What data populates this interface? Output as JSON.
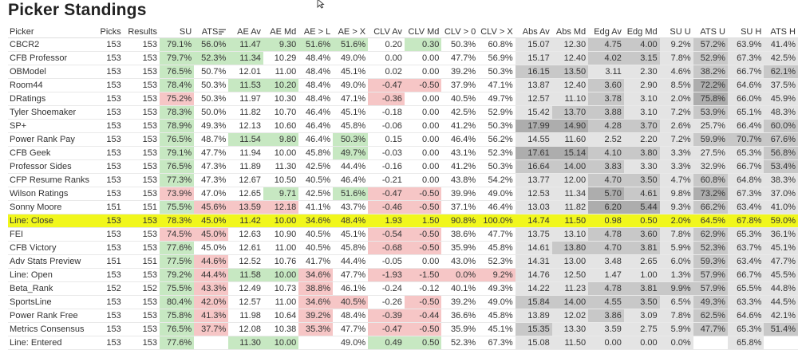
{
  "title": "Picker Standings",
  "colors": {
    "highlight": "#f1f71c",
    "green": "#c7e8c2",
    "red": "#f6c6c6",
    "gray_light": "#e4e4e4",
    "gray_mid": "#c8c8c8",
    "gray_dark": "#adadad"
  },
  "columns": [
    "Picker",
    "Picks",
    "Results",
    "SU",
    "ATS",
    "AE Av",
    "AE Md",
    "AE > L",
    "AE > X",
    "CLV Av",
    "CLV Md",
    "CLV > 0",
    "CLV > X",
    "Abs Av",
    "Abs Md",
    "Edg Av",
    "Edg Md",
    "SU U",
    "ATS U",
    "SU H",
    "ATS H"
  ],
  "rows": [
    {
      "c": [
        "CBCR2",
        "153",
        "153",
        "79.1%",
        "56.0%",
        "11.47",
        "9.30",
        "51.6%",
        "51.6%",
        "0.20",
        "0.30",
        "50.3%",
        "60.8%",
        "15.07",
        "12.30",
        "4.75",
        "4.00",
        "9.2%",
        "57.2%",
        "63.9%",
        "41.4%"
      ],
      "s": [
        "",
        "",
        "",
        "g",
        "g",
        "g",
        "g",
        "g",
        "g",
        "",
        "g",
        "",
        "",
        "a",
        "a",
        "b",
        "b",
        "a",
        "b",
        "a",
        "a"
      ]
    },
    {
      "c": [
        "CFB Professor",
        "153",
        "153",
        "79.7%",
        "52.3%",
        "11.34",
        "10.29",
        "48.4%",
        "49.0%",
        "0.00",
        "0.00",
        "47.7%",
        "56.9%",
        "15.17",
        "12.40",
        "4.02",
        "3.15",
        "7.8%",
        "52.9%",
        "67.3%",
        "42.5%"
      ],
      "s": [
        "",
        "",
        "",
        "g",
        "g",
        "g",
        "",
        "",
        "",
        "",
        "",
        "",
        "",
        "a",
        "a",
        "b",
        "b",
        "a",
        "b",
        "a",
        "a"
      ]
    },
    {
      "c": [
        "OBModel",
        "153",
        "153",
        "76.5%",
        "50.7%",
        "12.01",
        "11.00",
        "48.4%",
        "45.1%",
        "0.02",
        "0.00",
        "39.2%",
        "50.3%",
        "16.15",
        "13.50",
        "3.11",
        "2.30",
        "4.6%",
        "38.2%",
        "66.7%",
        "62.1%"
      ],
      "s": [
        "",
        "",
        "",
        "g",
        "",
        "",
        "",
        "",
        "",
        "",
        "",
        "",
        "",
        "b",
        "b",
        "a",
        "a",
        "a",
        "b",
        "a",
        "b"
      ]
    },
    {
      "c": [
        "Room44",
        "153",
        "153",
        "78.4%",
        "50.3%",
        "11.53",
        "10.20",
        "48.4%",
        "49.0%",
        "-0.47",
        "-0.50",
        "37.9%",
        "47.1%",
        "13.87",
        "12.40",
        "3.60",
        "2.90",
        "8.5%",
        "72.2%",
        "64.6%",
        "37.5%"
      ],
      "s": [
        "",
        "",
        "",
        "g",
        "",
        "g",
        "g",
        "",
        "",
        "r",
        "r",
        "",
        "",
        "a",
        "a",
        "b",
        "a",
        "a",
        "c",
        "a",
        "a"
      ]
    },
    {
      "c": [
        "DRatings",
        "153",
        "153",
        "75.2%",
        "50.3%",
        "11.97",
        "10.30",
        "48.4%",
        "47.1%",
        "-0.36",
        "0.00",
        "40.5%",
        "49.7%",
        "12.57",
        "11.10",
        "3.78",
        "3.10",
        "2.0%",
        "75.8%",
        "66.0%",
        "45.9%"
      ],
      "s": [
        "",
        "",
        "",
        "r",
        "",
        "",
        "",
        "",
        "",
        "r",
        "",
        "",
        "",
        "a",
        "a",
        "b",
        "a",
        "a",
        "c",
        "a",
        "a"
      ]
    },
    {
      "c": [
        "Tyler Shoemaker",
        "153",
        "153",
        "78.3%",
        "50.0%",
        "11.82",
        "10.70",
        "46.4%",
        "45.1%",
        "-0.18",
        "0.00",
        "42.5%",
        "52.9%",
        "15.42",
        "13.70",
        "3.88",
        "3.10",
        "7.2%",
        "53.9%",
        "65.1%",
        "48.3%"
      ],
      "s": [
        "",
        "",
        "",
        "g",
        "",
        "",
        "",
        "",
        "",
        "",
        "",
        "",
        "",
        "a",
        "b",
        "b",
        "a",
        "a",
        "b",
        "a",
        "a"
      ]
    },
    {
      "c": [
        "SP+",
        "153",
        "153",
        "78.9%",
        "49.3%",
        "12.13",
        "10.60",
        "46.4%",
        "45.8%",
        "-0.06",
        "0.00",
        "41.2%",
        "50.3%",
        "17.99",
        "14.90",
        "4.28",
        "3.70",
        "2.6%",
        "25.7%",
        "66.4%",
        "60.0%"
      ],
      "s": [
        "",
        "",
        "",
        "g",
        "",
        "",
        "",
        "",
        "",
        "",
        "",
        "",
        "",
        "c",
        "c",
        "b",
        "b",
        "a",
        "a",
        "a",
        "b"
      ]
    },
    {
      "c": [
        "Power Rank Pay",
        "153",
        "153",
        "76.5%",
        "48.7%",
        "11.54",
        "9.80",
        "46.4%",
        "50.3%",
        "0.15",
        "0.00",
        "46.4%",
        "56.2%",
        "14.55",
        "11.60",
        "2.52",
        "2.20",
        "7.2%",
        "59.9%",
        "70.7%",
        "67.6%"
      ],
      "s": [
        "",
        "",
        "",
        "g",
        "",
        "g",
        "g",
        "",
        "g",
        "",
        "",
        "",
        "",
        "a",
        "a",
        "a",
        "a",
        "a",
        "b",
        "b",
        "b"
      ]
    },
    {
      "c": [
        "CFB Geek",
        "153",
        "153",
        "79.1%",
        "47.7%",
        "11.94",
        "10.00",
        "45.8%",
        "49.7%",
        "-0.03",
        "0.00",
        "43.1%",
        "52.3%",
        "17.61",
        "15.14",
        "4.10",
        "3.80",
        "3.3%",
        "27.5%",
        "65.3%",
        "56.8%"
      ],
      "s": [
        "",
        "",
        "",
        "g",
        "",
        "",
        "",
        "",
        "g",
        "",
        "",
        "",
        "",
        "c",
        "c",
        "b",
        "b",
        "a",
        "a",
        "a",
        "b"
      ]
    },
    {
      "c": [
        "Professor Sides",
        "153",
        "153",
        "76.5%",
        "47.3%",
        "11.89",
        "11.30",
        "42.5%",
        "44.4%",
        "-0.16",
        "0.00",
        "41.2%",
        "50.3%",
        "16.64",
        "14.00",
        "3.83",
        "3.30",
        "3.3%",
        "32.9%",
        "66.7%",
        "53.4%"
      ],
      "s": [
        "",
        "",
        "",
        "g",
        "",
        "",
        "",
        "",
        "",
        "",
        "",
        "",
        "",
        "b",
        "b",
        "b",
        "a",
        "a",
        "a",
        "a",
        "b"
      ]
    },
    {
      "c": [
        "CFP Resume Ranks",
        "153",
        "153",
        "77.3%",
        "47.3%",
        "12.67",
        "10.50",
        "40.5%",
        "46.4%",
        "-0.21",
        "0.00",
        "43.8%",
        "54.2%",
        "13.77",
        "12.00",
        "4.70",
        "3.50",
        "4.7%",
        "60.8%",
        "64.8%",
        "38.3%"
      ],
      "s": [
        "",
        "",
        "",
        "g",
        "",
        "",
        "",
        "",
        "",
        "",
        "",
        "",
        "",
        "a",
        "a",
        "b",
        "b",
        "a",
        "b",
        "a",
        "a"
      ]
    },
    {
      "c": [
        "Wilson Ratings",
        "153",
        "153",
        "73.9%",
        "47.0%",
        "12.65",
        "9.71",
        "42.5%",
        "51.6%",
        "-0.47",
        "-0.50",
        "39.9%",
        "49.0%",
        "12.53",
        "11.34",
        "5.70",
        "4.61",
        "9.8%",
        "73.2%",
        "67.3%",
        "37.0%"
      ],
      "s": [
        "",
        "",
        "",
        "r",
        "",
        "",
        "g",
        "",
        "g",
        "r",
        "r",
        "",
        "",
        "a",
        "a",
        "c",
        "b",
        "a",
        "c",
        "a",
        "a"
      ]
    },
    {
      "c": [
        "Sonny Moore",
        "151",
        "151",
        "75.5%",
        "45.6%",
        "13.59",
        "12.18",
        "41.1%",
        "43.7%",
        "-0.46",
        "-0.50",
        "37.1%",
        "46.4%",
        "13.03",
        "11.82",
        "6.20",
        "5.44",
        "9.3%",
        "66.2%",
        "63.4%",
        "41.0%"
      ],
      "s": [
        "",
        "",
        "",
        "g",
        "r",
        "r",
        "r",
        "",
        "",
        "r",
        "r",
        "",
        "",
        "a",
        "a",
        "c",
        "c",
        "a",
        "b",
        "a",
        "a"
      ]
    },
    {
      "c": [
        "Line: Close",
        "153",
        "153",
        "78.3%",
        "45.0%",
        "11.42",
        "10.00",
        "34.6%",
        "48.4%",
        "1.93",
        "1.50",
        "90.8%",
        "100.0%",
        "14.74",
        "11.50",
        "0.98",
        "0.50",
        "2.0%",
        "64.5%",
        "67.8%",
        "59.0%"
      ],
      "h": 1
    },
    {
      "c": [
        "FEI",
        "153",
        "153",
        "74.5%",
        "45.0%",
        "12.63",
        "10.90",
        "40.5%",
        "45.1%",
        "-0.54",
        "-0.50",
        "38.6%",
        "47.7%",
        "13.75",
        "13.10",
        "4.78",
        "3.60",
        "7.8%",
        "62.9%",
        "65.3%",
        "36.1%"
      ],
      "s": [
        "",
        "",
        "",
        "r",
        "r",
        "",
        "",
        "",
        "",
        "r",
        "r",
        "",
        "",
        "a",
        "a",
        "b",
        "b",
        "a",
        "b",
        "a",
        "a"
      ]
    },
    {
      "c": [
        "CFB Victory",
        "153",
        "153",
        "77.6%",
        "45.0%",
        "12.61",
        "11.00",
        "40.5%",
        "45.8%",
        "-0.68",
        "-0.50",
        "35.9%",
        "45.8%",
        "14.61",
        "13.80",
        "4.70",
        "3.81",
        "5.9%",
        "52.3%",
        "63.7%",
        "45.1%"
      ],
      "s": [
        "",
        "",
        "",
        "g",
        "",
        "",
        "",
        "",
        "",
        "r",
        "r",
        "",
        "",
        "a",
        "b",
        "b",
        "b",
        "a",
        "b",
        "a",
        "a"
      ]
    },
    {
      "c": [
        "Adv Stats Preview",
        "151",
        "151",
        "77.5%",
        "44.6%",
        "12.52",
        "10.76",
        "41.7%",
        "44.4%",
        "-0.05",
        "0.00",
        "43.0%",
        "52.3%",
        "14.31",
        "13.00",
        "3.48",
        "2.65",
        "6.0%",
        "59.3%",
        "63.4%",
        "47.7%"
      ],
      "s": [
        "",
        "",
        "",
        "g",
        "r",
        "",
        "",
        "",
        "",
        "",
        "",
        "",
        "",
        "a",
        "a",
        "a",
        "a",
        "a",
        "b",
        "a",
        "a"
      ]
    },
    {
      "c": [
        "Line: Open",
        "153",
        "153",
        "79.2%",
        "44.4%",
        "11.58",
        "10.00",
        "34.6%",
        "47.7%",
        "-1.93",
        "-1.50",
        "0.0%",
        "9.2%",
        "14.76",
        "12.50",
        "1.47",
        "1.00",
        "1.3%",
        "57.9%",
        "66.7%",
        "45.5%"
      ],
      "s": [
        "",
        "",
        "",
        "g",
        "r",
        "g",
        "g",
        "r",
        "",
        "r",
        "r",
        "r",
        "r",
        "a",
        "a",
        "a",
        "a",
        "a",
        "b",
        "a",
        "a"
      ]
    },
    {
      "c": [
        "Beta_Rank",
        "152",
        "152",
        "75.5%",
        "43.3%",
        "12.49",
        "10.73",
        "38.8%",
        "46.1%",
        "-0.24",
        "-0.12",
        "40.1%",
        "49.3%",
        "14.22",
        "11.23",
        "4.78",
        "3.81",
        "9.9%",
        "57.9%",
        "65.5%",
        "44.8%"
      ],
      "s": [
        "",
        "",
        "",
        "g",
        "r",
        "",
        "",
        "r",
        "",
        "",
        "",
        "",
        "",
        "a",
        "a",
        "b",
        "b",
        "b",
        "b",
        "a",
        "a"
      ]
    },
    {
      "c": [
        "SportsLine",
        "153",
        "153",
        "80.4%",
        "42.0%",
        "12.57",
        "11.00",
        "34.6%",
        "40.5%",
        "-0.26",
        "-0.50",
        "39.2%",
        "49.0%",
        "15.84",
        "14.00",
        "4.55",
        "3.50",
        "6.5%",
        "49.3%",
        "63.3%",
        "44.5%"
      ],
      "s": [
        "",
        "",
        "",
        "g",
        "r",
        "",
        "",
        "r",
        "r",
        "",
        "r",
        "",
        "",
        "b",
        "b",
        "b",
        "b",
        "a",
        "b",
        "a",
        "a"
      ]
    },
    {
      "c": [
        "Power Rank Free",
        "153",
        "153",
        "75.8%",
        "41.3%",
        "11.98",
        "10.64",
        "39.2%",
        "48.4%",
        "-0.39",
        "-0.44",
        "36.6%",
        "45.8%",
        "13.89",
        "12.02",
        "3.86",
        "3.09",
        "7.8%",
        "62.5%",
        "64.6%",
        "42.1%"
      ],
      "s": [
        "",
        "",
        "",
        "g",
        "r",
        "",
        "",
        "r",
        "",
        "r",
        "r",
        "",
        "",
        "a",
        "a",
        "b",
        "a",
        "a",
        "b",
        "a",
        "a"
      ]
    },
    {
      "c": [
        "Metrics Consensus",
        "153",
        "153",
        "76.5%",
        "37.7%",
        "12.08",
        "10.38",
        "35.3%",
        "47.7%",
        "-0.47",
        "-0.50",
        "35.9%",
        "45.1%",
        "15.35",
        "13.30",
        "3.59",
        "2.75",
        "5.9%",
        "47.7%",
        "65.3%",
        "51.4%"
      ],
      "s": [
        "",
        "",
        "",
        "g",
        "r",
        "",
        "",
        "r",
        "",
        "r",
        "r",
        "",
        "",
        "b",
        "a",
        "a",
        "a",
        "a",
        "b",
        "a",
        "b"
      ]
    },
    {
      "c": [
        "Line: Entered",
        "153",
        "153",
        "77.6%",
        "",
        "11.30",
        "10.00",
        "",
        "49.0%",
        "0.49",
        "0.50",
        "52.3%",
        "67.3%",
        "15.08",
        "11.50",
        "0.00",
        "0.00",
        "0.0%",
        "",
        "65.8%",
        ""
      ],
      "s": [
        "",
        "",
        "",
        "g",
        "",
        "g",
        "g",
        "",
        "",
        "g",
        "g",
        "",
        "",
        "a",
        "a",
        "a",
        "a",
        "a",
        "",
        "a",
        ""
      ]
    }
  ]
}
